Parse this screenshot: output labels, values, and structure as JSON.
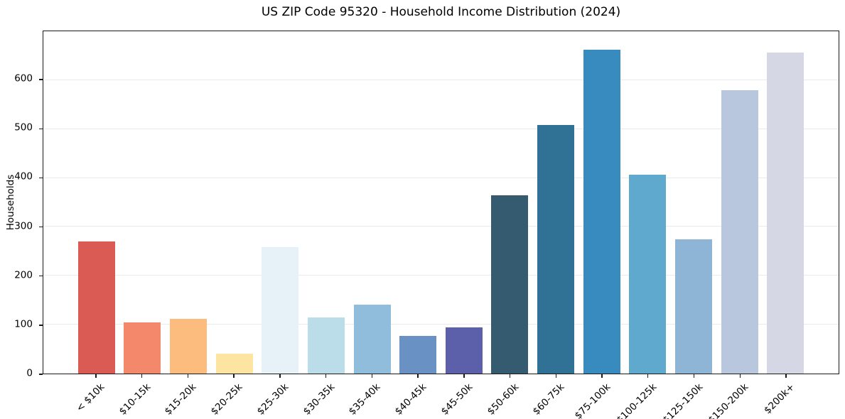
{
  "chart_data": {
    "type": "bar",
    "title": "US ZIP Code 95320 - Household Income Distribution (2024)",
    "xlabel": "",
    "ylabel": "Households",
    "categories": [
      "< $10k",
      "$10-15k",
      "$15-20k",
      "$20-25k",
      "$25-30k",
      "$30-35k",
      "$35-40k",
      "$40-45k",
      "$45-50k",
      "$50-60k",
      "$60-75k",
      "$75-100k",
      "$100-125k",
      "$125-150k",
      "$150-200k",
      "$200k+"
    ],
    "values": [
      270,
      105,
      112,
      41,
      259,
      115,
      141,
      77,
      95,
      364,
      508,
      662,
      406,
      275,
      580,
      656
    ],
    "bar_colors": [
      "#d95b53",
      "#f4886b",
      "#fcbc7d",
      "#fde4a1",
      "#e6f2f7",
      "#badde9",
      "#91bddc",
      "#6a91c3",
      "#5c5fa9",
      "#355b71",
      "#2f7295",
      "#378bbf",
      "#5fa8ce",
      "#8fb5d6",
      "#b8c7dd",
      "#d6d7e5"
    ],
    "yticks": [
      0,
      100,
      200,
      300,
      400,
      500,
      600
    ],
    "ylim": [
      0,
      700
    ],
    "grid": "horizontal",
    "gridline_color": "#e9e9ee",
    "axis_color": "#1a1a1a",
    "background": "#ffffff",
    "legend_position": "none",
    "x_tick_label_rotation_deg": 45
  }
}
